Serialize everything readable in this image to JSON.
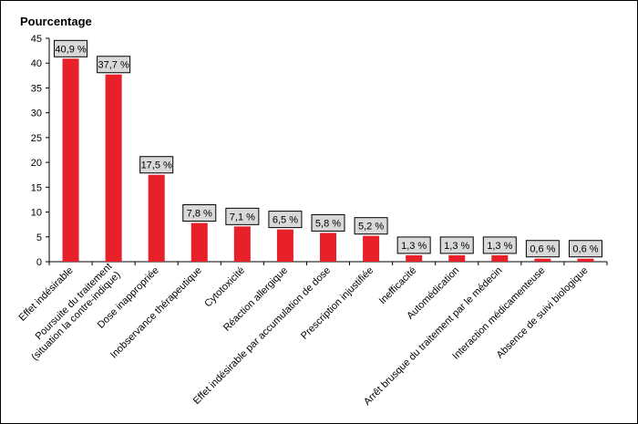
{
  "chart_data": {
    "type": "bar",
    "ylabel": "Pourcentage",
    "ylim": [
      0,
      45
    ],
    "yticks": [
      0,
      5,
      10,
      15,
      20,
      25,
      30,
      35,
      40,
      45
    ],
    "grid": false,
    "bar_color": "#e8202a",
    "label_box_color": "#d9d9d9",
    "categories": [
      "Effet indésirable",
      "Poursuite du traitement\n(situation la contre-indique)",
      "Dose inappropriée",
      "Inobservance thérapeutique",
      "Cytotoxicité",
      "Réaction allergique",
      "Effet indésirable par accumulation de dose",
      "Prescription injustifiée",
      "Inefficacité",
      "Automédication",
      "Arrêt brusque du traitement par le médecin",
      "Interaction médicamenteuse",
      "Absence de suivi biologique"
    ],
    "values": [
      40.9,
      37.7,
      17.5,
      7.8,
      7.1,
      6.5,
      5.8,
      5.2,
      1.3,
      1.3,
      1.3,
      0.6,
      0.6
    ],
    "data_labels": [
      "40,9 %",
      "37,7 %",
      "17,5 %",
      "7,8 %",
      "7,1 %",
      "6,5 %",
      "5,8 %",
      "5,2 %",
      "1,3 %",
      "1,3 %",
      "1,3 %",
      "0,6 %",
      "0,6 %"
    ]
  }
}
